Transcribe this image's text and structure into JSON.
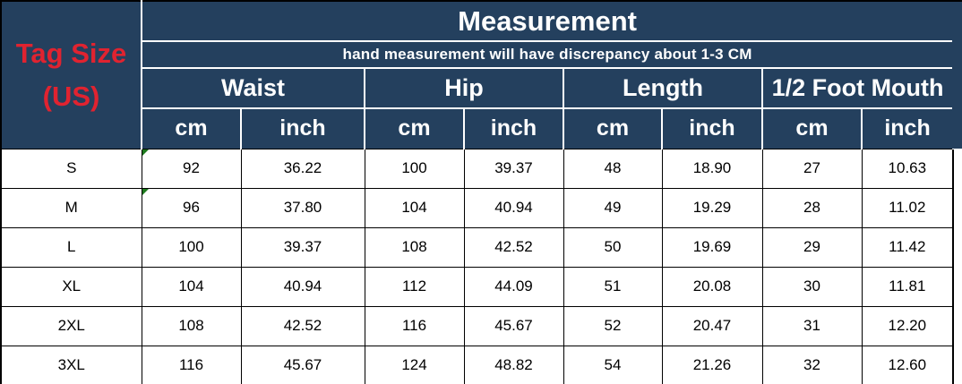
{
  "colors": {
    "header_bg": "#24405E",
    "header_text": "#FFFFFF",
    "tag_size_red": "#E02330",
    "grid_black": "#000000",
    "green_flag": "#1E7A1E",
    "teal_highlight": "#2BB493"
  },
  "header": {
    "tag_size_line1": "Tag Size",
    "tag_size_line2": "(US)",
    "title": "Measurement",
    "subtitle": "hand measurement will have discrepancy about 1-3 CM",
    "groups": [
      {
        "label": "Waist"
      },
      {
        "label": "Hip"
      },
      {
        "label": "Length"
      },
      {
        "label": "1/2 Foot Mouth"
      }
    ],
    "units": [
      "cm",
      "inch",
      "cm",
      "inch",
      "cm",
      "inch",
      "cm",
      "inch"
    ]
  },
  "chart_data": {
    "type": "table",
    "title": "Measurement",
    "columns": [
      "Tag Size (US)",
      "Waist cm",
      "Waist inch",
      "Hip cm",
      "Hip inch",
      "Length cm",
      "Length inch",
      "1/2 Foot Mouth cm",
      "1/2 Foot Mouth inch"
    ],
    "rows": [
      {
        "size": "S",
        "values": [
          "92",
          "36.22",
          "100",
          "39.37",
          "48",
          "18.90",
          "27",
          "10.63"
        ]
      },
      {
        "size": "M",
        "values": [
          "96",
          "37.80",
          "104",
          "40.94",
          "49",
          "19.29",
          "28",
          "11.02"
        ]
      },
      {
        "size": "L",
        "values": [
          "100",
          "39.37",
          "108",
          "42.52",
          "50",
          "19.69",
          "29",
          "11.42"
        ]
      },
      {
        "size": "XL",
        "values": [
          "104",
          "40.94",
          "112",
          "44.09",
          "51",
          "20.08",
          "30",
          "11.81"
        ]
      },
      {
        "size": "2XL",
        "values": [
          "108",
          "42.52",
          "116",
          "45.67",
          "52",
          "20.47",
          "31",
          "12.20"
        ]
      },
      {
        "size": "3XL",
        "values": [
          "116",
          "45.67",
          "124",
          "48.82",
          "54",
          "21.26",
          "32",
          "12.60"
        ]
      }
    ],
    "green_corner_cells": [
      [
        0,
        0
      ],
      [
        1,
        0
      ]
    ],
    "teal_bottom_cell": [
      5,
      2
    ]
  }
}
